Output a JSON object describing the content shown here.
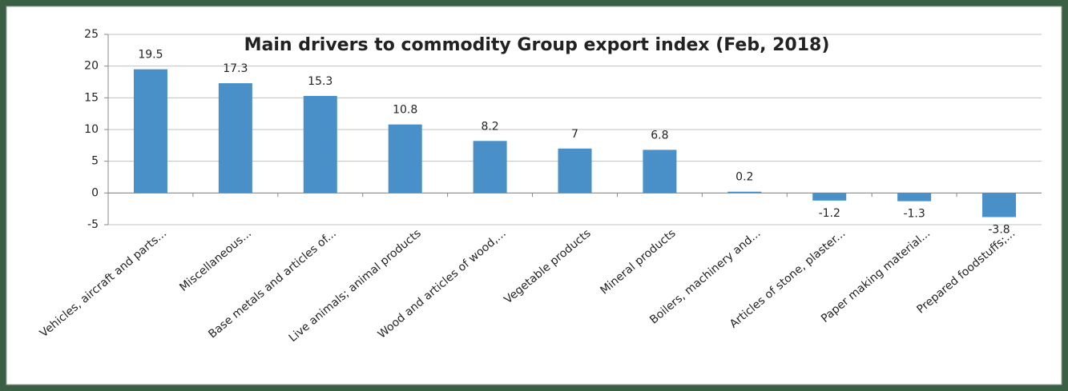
{
  "chart_data": {
    "type": "bar",
    "title": "Main drivers to commodity Group export index (Feb, 2018)",
    "categories": [
      "Vehicles, aircraft and parts...",
      "Miscellaneous...",
      "Base metals and articles of...",
      "Live animals; animal products",
      "Wood and articles of wood,...",
      "Vegetable products",
      "Mineral products",
      "Boilers, machinery and...",
      "Articles of stone, plaster...",
      "Paper making material...",
      "Prepared foodstuffs;..."
    ],
    "values": [
      19.5,
      17.3,
      15.3,
      10.8,
      8.2,
      7,
      6.8,
      0.2,
      -1.2,
      -1.3,
      -3.8
    ],
    "color": "#4a90c8",
    "ylim": [
      -5,
      25
    ],
    "yticks": [
      -5,
      0,
      5,
      10,
      15,
      20,
      25
    ],
    "grid": true
  }
}
